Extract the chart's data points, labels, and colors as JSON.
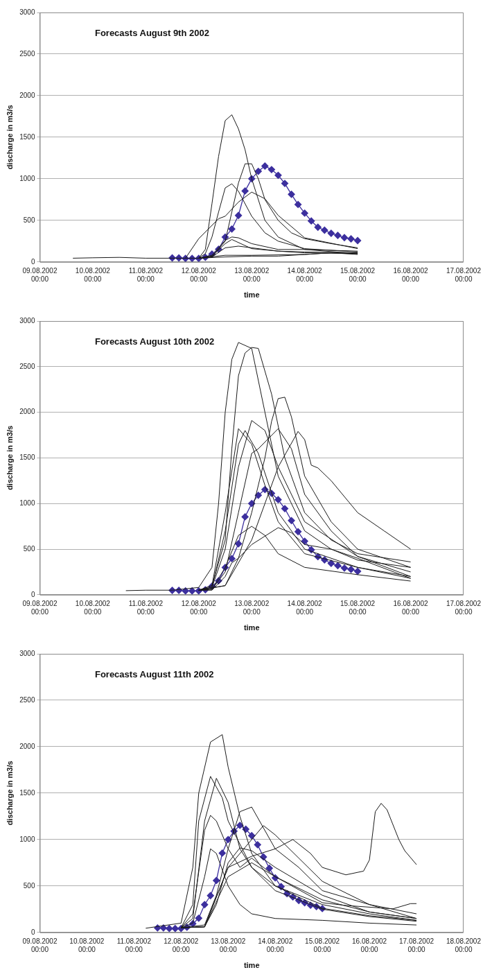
{
  "chart_data": [
    {
      "type": "line",
      "title": "Forecasts August 9th 2002",
      "xlabel": "time",
      "ylabel": "discharge in m3/s",
      "xlim": [
        "2002-08-09T00:00",
        "2002-08-17T00:00"
      ],
      "xticks": [
        {
          "value": "2002-08-09T00:00",
          "label": "09.08.2002 00:00"
        },
        {
          "value": "2002-08-10T00:00",
          "label": "10.08.2002 00:00"
        },
        {
          "value": "2002-08-11T00:00",
          "label": "11.08.2002 00:00"
        },
        {
          "value": "2002-08-12T00:00",
          "label": "12.08.2002 00:00"
        },
        {
          "value": "2002-08-13T00:00",
          "label": "13.08.2002 00:00"
        },
        {
          "value": "2002-08-14T00:00",
          "label": "14.08.2002 00:00"
        },
        {
          "value": "2002-08-15T00:00",
          "label": "15.08.2002 00:00"
        },
        {
          "value": "2002-08-16T00:00",
          "label": "16.08.2002 00:00"
        },
        {
          "value": "2002-08-17T00:00",
          "label": "17.08.2002 00:00"
        }
      ],
      "ylim": [
        0,
        3000
      ],
      "yticks": [
        0,
        500,
        1000,
        1500,
        2000,
        2500,
        3000
      ],
      "grid": "y",
      "legend": false,
      "marker": "none",
      "line_style": "solid",
      "series": [
        {
          "color": "#1a1a1a",
          "x": [
            "2002-08-09T15:00",
            "2002-08-10T00:00",
            "2002-08-10T12:00",
            "2002-08-11T00:00",
            "2002-08-11T12:00",
            "2002-08-12T00:00",
            "2002-08-12T03:00",
            "2002-08-12T06:00",
            "2002-08-12T09:00",
            "2002-08-12T12:00",
            "2002-08-12T15:00",
            "2002-08-12T18:00",
            "2002-08-12T21:00",
            "2002-08-13T00:00",
            "2002-08-13T06:00",
            "2002-08-13T12:00",
            "2002-08-14T00:00",
            "2002-08-15T00:00"
          ],
          "values": [
            45,
            50,
            55,
            45,
            45,
            45,
            150,
            700,
            1270,
            1700,
            1770,
            1600,
            1350,
            1000,
            500,
            300,
            150,
            100
          ]
        },
        {
          "color": "#1a1a1a",
          "x": [
            "2002-08-12T00:00",
            "2002-08-12T03:00",
            "2002-08-12T06:00",
            "2002-08-12T09:00",
            "2002-08-12T12:00",
            "2002-08-12T15:00",
            "2002-08-12T18:00",
            "2002-08-13T00:00",
            "2002-08-13T06:00",
            "2002-08-13T12:00",
            "2002-08-14T00:00",
            "2002-08-15T00:00"
          ],
          "values": [
            45,
            100,
            300,
            600,
            890,
            940,
            850,
            550,
            350,
            250,
            160,
            120
          ]
        },
        {
          "color": "#1a1a1a",
          "x": [
            "2002-08-12T00:00",
            "2002-08-12T06:00",
            "2002-08-12T12:00",
            "2002-08-12T15:00",
            "2002-08-12T18:00",
            "2002-08-12T21:00",
            "2002-08-13T00:00",
            "2002-08-13T03:00",
            "2002-08-13T06:00",
            "2002-08-13T12:00",
            "2002-08-13T18:00",
            "2002-08-14T00:00",
            "2002-08-14T12:00",
            "2002-08-15T00:00"
          ],
          "values": [
            45,
            60,
            250,
            600,
            950,
            1180,
            1180,
            1000,
            750,
            500,
            350,
            280,
            220,
            170
          ]
        },
        {
          "color": "#1a1a1a",
          "x": [
            "2002-08-11T18:00",
            "2002-08-12T00:00",
            "2002-08-12T09:00",
            "2002-08-12T12:00",
            "2002-08-12T18:00",
            "2002-08-13T00:00",
            "2002-08-13T06:00",
            "2002-08-13T12:00",
            "2002-08-14T00:00",
            "2002-08-15T00:00"
          ],
          "values": [
            45,
            280,
            520,
            550,
            720,
            840,
            760,
            560,
            290,
            160
          ]
        },
        {
          "color": "#1a1a1a",
          "x": [
            "2002-08-12T00:00",
            "2002-08-12T06:00",
            "2002-08-12T12:00",
            "2002-08-12T15:00",
            "2002-08-12T18:00",
            "2002-08-13T00:00",
            "2002-08-13T12:00",
            "2002-08-14T00:00",
            "2002-08-15T00:00"
          ],
          "values": [
            45,
            80,
            260,
            300,
            290,
            220,
            150,
            150,
            130
          ]
        },
        {
          "color": "#1a1a1a",
          "x": [
            "2002-08-12T00:00",
            "2002-08-12T06:00",
            "2002-08-12T12:00",
            "2002-08-12T15:00",
            "2002-08-13T00:00",
            "2002-08-13T12:00",
            "2002-08-14T00:00",
            "2002-08-15T00:00"
          ],
          "values": [
            45,
            70,
            220,
            270,
            160,
            130,
            120,
            110
          ]
        },
        {
          "color": "#1a1a1a",
          "x": [
            "2002-08-12T00:00",
            "2002-08-12T06:00",
            "2002-08-12T12:00",
            "2002-08-12T18:00",
            "2002-08-13T00:00",
            "2002-08-13T12:00",
            "2002-08-14T00:00",
            "2002-08-15T00:00"
          ],
          "values": [
            45,
            60,
            170,
            190,
            170,
            130,
            110,
            100
          ]
        },
        {
          "color": "#1a1a1a",
          "x": [
            "2002-08-12T00:00",
            "2002-08-12T12:00",
            "2002-08-13T00:00",
            "2002-08-14T00:00",
            "2002-08-14T12:00",
            "2002-08-15T00:00"
          ],
          "values": [
            45,
            80,
            80,
            90,
            110,
            90
          ]
        },
        {
          "color": "#1a1a1a",
          "x": [
            "2002-08-12T00:00",
            "2002-08-12T12:00",
            "2002-08-13T00:00",
            "2002-08-13T12:00",
            "2002-08-14T00:00",
            "2002-08-14T12:00",
            "2002-08-15T00:00"
          ],
          "values": [
            45,
            60,
            70,
            70,
            90,
            110,
            100
          ]
        },
        {
          "color": "#3c2f9e",
          "marker": "diamond",
          "x": [
            "2002-08-11T12:00",
            "2002-08-11T15:00",
            "2002-08-11T18:00",
            "2002-08-11T21:00",
            "2002-08-12T00:00",
            "2002-08-12T03:00",
            "2002-08-12T06:00",
            "2002-08-12T09:00",
            "2002-08-12T12:00",
            "2002-08-12T15:00",
            "2002-08-12T18:00",
            "2002-08-12T21:00",
            "2002-08-13T00:00",
            "2002-08-13T03:00",
            "2002-08-13T06:00",
            "2002-08-13T09:00",
            "2002-08-13T12:00",
            "2002-08-13T15:00",
            "2002-08-13T18:00",
            "2002-08-13T21:00",
            "2002-08-14T00:00",
            "2002-08-14T03:00",
            "2002-08-14T06:00",
            "2002-08-14T09:00",
            "2002-08-14T12:00",
            "2002-08-14T15:00",
            "2002-08-14T18:00",
            "2002-08-14T21:00",
            "2002-08-15T00:00"
          ],
          "values": [
            48,
            48,
            42,
            42,
            42,
            55,
            94,
            153,
            299,
            396,
            559,
            854,
            1000,
            1090,
            1153,
            1111,
            1042,
            944,
            813,
            691,
            587,
            493,
            417,
            382,
            344,
            319,
            292,
            278,
            257
          ]
        }
      ]
    },
    {
      "type": "line",
      "title": "Forecasts August 10th 2002",
      "xlabel": "time",
      "ylabel": "discharge in m3/s",
      "xlim": [
        "2002-08-09T00:00",
        "2002-08-17T00:00"
      ],
      "xticks": [
        {
          "value": "2002-08-09T00:00",
          "label": "09.08.2002 00:00"
        },
        {
          "value": "2002-08-10T00:00",
          "label": "10.08.2002 00:00"
        },
        {
          "value": "2002-08-11T00:00",
          "label": "11.08.2002 00:00"
        },
        {
          "value": "2002-08-12T00:00",
          "label": "12.08.2002 00:00"
        },
        {
          "value": "2002-08-13T00:00",
          "label": "13.08.2002 00:00"
        },
        {
          "value": "2002-08-14T00:00",
          "label": "14.08.2002 00:00"
        },
        {
          "value": "2002-08-15T00:00",
          "label": "15.08.2002 00:00"
        },
        {
          "value": "2002-08-16T00:00",
          "label": "16.08.2002 00:00"
        },
        {
          "value": "2002-08-17T00:00",
          "label": "17.08.2002 00:00"
        }
      ],
      "ylim": [
        0,
        3000
      ],
      "yticks": [
        0,
        500,
        1000,
        1500,
        2000,
        2500,
        3000
      ],
      "grid": "y",
      "legend": false,
      "marker": "none",
      "line_style": "solid",
      "series": [
        {
          "color": "#1a1a1a",
          "x": [
            "2002-08-10T15:00",
            "2002-08-11T00:00",
            "2002-08-11T12:00",
            "2002-08-12T00:00",
            "2002-08-12T06:00",
            "2002-08-12T09:00",
            "2002-08-12T12:00",
            "2002-08-12T15:00",
            "2002-08-12T18:00",
            "2002-08-13T00:00",
            "2002-08-13T06:00",
            "2002-08-13T12:00",
            "2002-08-14T00:00",
            "2002-08-14T12:00",
            "2002-08-15T00:00",
            "2002-08-16T00:00"
          ],
          "values": [
            45,
            50,
            50,
            80,
            300,
            1000,
            2000,
            2580,
            2765,
            2700,
            2000,
            1300,
            700,
            500,
            380,
            300
          ]
        },
        {
          "color": "#1a1a1a",
          "x": [
            "2002-08-12T00:00",
            "2002-08-12T06:00",
            "2002-08-12T12:00",
            "2002-08-12T15:00",
            "2002-08-12T18:00",
            "2002-08-12T21:00",
            "2002-08-13T00:00",
            "2002-08-13T03:00",
            "2002-08-13T09:00",
            "2002-08-13T15:00",
            "2002-08-14T00:00",
            "2002-08-14T12:00",
            "2002-08-15T00:00",
            "2002-08-16T00:00"
          ],
          "values": [
            50,
            100,
            600,
            1600,
            2400,
            2650,
            2710,
            2700,
            2200,
            1500,
            900,
            600,
            450,
            360
          ]
        },
        {
          "color": "#1a1a1a",
          "x": [
            "2002-08-12T00:00",
            "2002-08-12T12:00",
            "2002-08-12T18:00",
            "2002-08-13T00:00",
            "2002-08-13T06:00",
            "2002-08-13T09:00",
            "2002-08-13T12:00",
            "2002-08-13T15:00",
            "2002-08-13T18:00",
            "2002-08-14T00:00",
            "2002-08-14T12:00",
            "2002-08-15T00:00",
            "2002-08-16T00:00"
          ],
          "values": [
            50,
            100,
            400,
            900,
            1500,
            1900,
            2150,
            2165,
            1950,
            1300,
            800,
            500,
            300
          ]
        },
        {
          "color": "#1a1a1a",
          "x": [
            "2002-08-12T00:00",
            "2002-08-12T06:00",
            "2002-08-12T12:00",
            "2002-08-12T18:00",
            "2002-08-13T00:00",
            "2002-08-13T06:00",
            "2002-08-13T12:00",
            "2002-08-14T00:00",
            "2002-08-15T00:00",
            "2002-08-16T00:00"
          ],
          "values": [
            50,
            80,
            500,
            1400,
            1910,
            1800,
            1400,
            800,
            420,
            250
          ]
        },
        {
          "color": "#1a1a1a",
          "x": [
            "2002-08-12T00:00",
            "2002-08-12T06:00",
            "2002-08-12T12:00",
            "2002-08-12T18:00",
            "2002-08-13T00:00",
            "2002-08-13T06:00",
            "2002-08-13T12:00",
            "2002-08-14T00:00",
            "2002-08-15T00:00",
            "2002-08-16T00:00"
          ],
          "values": [
            50,
            100,
            900,
            1820,
            1650,
            1200,
            800,
            450,
            300,
            200
          ]
        },
        {
          "color": "#1a1a1a",
          "x": [
            "2002-08-12T00:00",
            "2002-08-12T06:00",
            "2002-08-12T12:00",
            "2002-08-12T18:00",
            "2002-08-12T21:00",
            "2002-08-13T03:00",
            "2002-08-13T12:00",
            "2002-08-14T00:00",
            "2002-08-15T00:00",
            "2002-08-16T00:00"
          ],
          "values": [
            50,
            80,
            700,
            1650,
            1800,
            1550,
            900,
            500,
            300,
            180
          ]
        },
        {
          "color": "#1a1a1a",
          "x": [
            "2002-08-12T00:00",
            "2002-08-12T06:00",
            "2002-08-12T12:00",
            "2002-08-12T18:00",
            "2002-08-13T00:00",
            "2002-08-13T03:00",
            "2002-08-13T12:00",
            "2002-08-13T18:00",
            "2002-08-14T00:00",
            "2002-08-14T12:00",
            "2002-08-15T00:00",
            "2002-08-16T00:00"
          ],
          "values": [
            50,
            60,
            250,
            900,
            1550,
            1600,
            1820,
            1600,
            1100,
            700,
            420,
            200
          ]
        },
        {
          "color": "#1a1a1a",
          "x": [
            "2002-08-12T00:00",
            "2002-08-12T12:00",
            "2002-08-13T00:00",
            "2002-08-13T12:00",
            "2002-08-13T21:00",
            "2002-08-14T00:00",
            "2002-08-14T03:00",
            "2002-08-14T06:00",
            "2002-08-14T12:00",
            "2002-08-15T00:00",
            "2002-08-15T12:00",
            "2002-08-16T00:00"
          ],
          "values": [
            50,
            100,
            600,
            1400,
            1790,
            1700,
            1420,
            1390,
            1250,
            900,
            700,
            500
          ]
        },
        {
          "color": "#1a1a1a",
          "x": [
            "2002-08-12T00:00",
            "2002-08-12T06:00",
            "2002-08-12T12:00",
            "2002-08-12T18:00",
            "2002-08-13T00:00",
            "2002-08-13T06:00",
            "2002-08-13T12:00",
            "2002-08-14T00:00",
            "2002-08-15T00:00",
            "2002-08-16T00:00"
          ],
          "values": [
            50,
            60,
            300,
            650,
            750,
            650,
            450,
            300,
            220,
            150
          ]
        },
        {
          "color": "#1a1a1a",
          "x": [
            "2002-08-12T00:00",
            "2002-08-12T06:00",
            "2002-08-12T12:00",
            "2002-08-12T15:00",
            "2002-08-12T18:00",
            "2002-08-13T00:00",
            "2002-08-13T12:00",
            "2002-08-13T18:00",
            "2002-08-14T00:00",
            "2002-08-14T12:00",
            "2002-08-15T00:00",
            "2002-08-16T00:00"
          ],
          "values": [
            50,
            50,
            200,
            350,
            400,
            550,
            735,
            680,
            550,
            500,
            400,
            180
          ]
        },
        {
          "color": "#3c2f9e",
          "marker": "diamond",
          "x": [
            "2002-08-11T12:00",
            "2002-08-11T15:00",
            "2002-08-11T18:00",
            "2002-08-11T21:00",
            "2002-08-12T00:00",
            "2002-08-12T03:00",
            "2002-08-12T06:00",
            "2002-08-12T09:00",
            "2002-08-12T12:00",
            "2002-08-12T15:00",
            "2002-08-12T18:00",
            "2002-08-12T21:00",
            "2002-08-13T00:00",
            "2002-08-13T03:00",
            "2002-08-13T06:00",
            "2002-08-13T09:00",
            "2002-08-13T12:00",
            "2002-08-13T15:00",
            "2002-08-13T18:00",
            "2002-08-13T21:00",
            "2002-08-14T00:00",
            "2002-08-14T03:00",
            "2002-08-14T06:00",
            "2002-08-14T09:00",
            "2002-08-14T12:00",
            "2002-08-14T15:00",
            "2002-08-14T18:00",
            "2002-08-14T21:00",
            "2002-08-15T00:00"
          ],
          "values": [
            48,
            48,
            42,
            42,
            42,
            55,
            94,
            153,
            299,
            396,
            559,
            854,
            1000,
            1090,
            1153,
            1111,
            1042,
            944,
            813,
            691,
            587,
            493,
            417,
            382,
            344,
            319,
            292,
            278,
            257
          ]
        }
      ]
    },
    {
      "type": "line",
      "title": "Forecasts August 11th 2002",
      "xlabel": "time",
      "ylabel": "discharge in m3/s",
      "xlim": [
        "2002-08-09T00:00",
        "2002-08-18T00:00"
      ],
      "xticks": [
        {
          "value": "2002-08-09T00:00",
          "label": "09.08.2002 00:00"
        },
        {
          "value": "2002-08-10T00:00",
          "label": "10.08.2002 00:00"
        },
        {
          "value": "2002-08-11T00:00",
          "label": "11.08.2002 00:00"
        },
        {
          "value": "2002-08-12T00:00",
          "label": "12.08.2002 00:00"
        },
        {
          "value": "2002-08-13T00:00",
          "label": "13.08.2002 00:00"
        },
        {
          "value": "2002-08-14T00:00",
          "label": "14.08.2002 00:00"
        },
        {
          "value": "2002-08-15T00:00",
          "label": "15.08.2002 00:00"
        },
        {
          "value": "2002-08-16T00:00",
          "label": "16.08.2002 00:00"
        },
        {
          "value": "2002-08-17T00:00",
          "label": "17.08.2002 00:00"
        },
        {
          "value": "2002-08-18T00:00",
          "label": "18.08.2002 00:00"
        }
      ],
      "ylim": [
        0,
        3000
      ],
      "yticks": [
        0,
        500,
        1000,
        1500,
        2000,
        2500,
        3000
      ],
      "grid": "y",
      "legend": false,
      "marker": "none",
      "line_style": "solid",
      "series": [
        {
          "color": "#1a1a1a",
          "x": [
            "2002-08-11T06:00",
            "2002-08-12T00:00",
            "2002-08-12T06:00",
            "2002-08-12T09:00",
            "2002-08-12T15:00",
            "2002-08-12T21:00",
            "2002-08-13T00:00",
            "2002-08-13T06:00",
            "2002-08-13T12:00",
            "2002-08-14T00:00",
            "2002-08-15T00:00",
            "2002-08-16T00:00",
            "2002-08-17T00:00"
          ],
          "values": [
            45,
            100,
            700,
            1500,
            2050,
            2130,
            1780,
            1250,
            850,
            500,
            260,
            180,
            130
          ]
        },
        {
          "color": "#1a1a1a",
          "x": [
            "2002-08-12T00:00",
            "2002-08-12T06:00",
            "2002-08-12T09:00",
            "2002-08-12T15:00",
            "2002-08-12T21:00",
            "2002-08-13T00:00",
            "2002-08-13T12:00",
            "2002-08-14T00:00",
            "2002-08-15T00:00",
            "2002-08-16T00:00",
            "2002-08-17T00:00"
          ],
          "values": [
            50,
            300,
            1200,
            1680,
            1450,
            1200,
            700,
            450,
            250,
            170,
            120
          ]
        },
        {
          "color": "#1a1a1a",
          "x": [
            "2002-08-12T00:00",
            "2002-08-12T06:00",
            "2002-08-12T12:00",
            "2002-08-12T18:00",
            "2002-08-13T00:00",
            "2002-08-13T06:00",
            "2002-08-13T12:00",
            "2002-08-14T00:00",
            "2002-08-15T00:00",
            "2002-08-16T00:00",
            "2002-08-17T00:00"
          ],
          "values": [
            50,
            150,
            1200,
            1660,
            1400,
            900,
            700,
            500,
            300,
            200,
            130
          ]
        },
        {
          "color": "#1a1a1a",
          "x": [
            "2002-08-12T00:00",
            "2002-08-12T06:00",
            "2002-08-12T12:00",
            "2002-08-12T15:00",
            "2002-08-12T18:00",
            "2002-08-13T00:00",
            "2002-08-13T06:00",
            "2002-08-13T12:00",
            "2002-08-14T00:00",
            "2002-08-15T00:00",
            "2002-08-16T00:00",
            "2002-08-17T00:00"
          ],
          "values": [
            50,
            200,
            1100,
            1260,
            1200,
            900,
            700,
            800,
            600,
            350,
            220,
            150
          ]
        },
        {
          "color": "#1a1a1a",
          "x": [
            "2002-08-12T00:00",
            "2002-08-12T06:00",
            "2002-08-12T12:00",
            "2002-08-12T15:00",
            "2002-08-12T18:00",
            "2002-08-13T00:00",
            "2002-08-13T06:00",
            "2002-08-13T12:00",
            "2002-08-14T00:00",
            "2002-08-15T00:00",
            "2002-08-16T00:00",
            "2002-08-17T00:00"
          ],
          "values": [
            50,
            100,
            600,
            900,
            850,
            500,
            300,
            200,
            150,
            130,
            100,
            80
          ]
        },
        {
          "color": "#1a1a1a",
          "x": [
            "2002-08-12T00:00",
            "2002-08-12T12:00",
            "2002-08-12T18:00",
            "2002-08-13T00:00",
            "2002-08-13T06:00",
            "2002-08-13T12:00",
            "2002-08-14T00:00",
            "2002-08-14T12:00",
            "2002-08-15T00:00",
            "2002-08-16T00:00",
            "2002-08-17T00:00"
          ],
          "values": [
            50,
            80,
            400,
            900,
            1300,
            1350,
            900,
            700,
            450,
            300,
            200
          ]
        },
        {
          "color": "#1a1a1a",
          "x": [
            "2002-08-12T00:00",
            "2002-08-12T12:00",
            "2002-08-13T00:00",
            "2002-08-13T06:00",
            "2002-08-13T18:00",
            "2002-08-14T00:00",
            "2002-08-14T12:00",
            "2002-08-15T00:00",
            "2002-08-16T00:00",
            "2002-08-17T00:00"
          ],
          "values": [
            50,
            60,
            700,
            850,
            1150,
            1050,
            800,
            550,
            300,
            150
          ]
        },
        {
          "color": "#1a1a1a",
          "x": [
            "2002-08-12T00:00",
            "2002-08-12T12:00",
            "2002-08-13T00:00",
            "2002-08-13T12:00",
            "2002-08-14T00:00",
            "2002-08-14T09:00",
            "2002-08-14T18:00",
            "2002-08-15T00:00",
            "2002-08-15T12:00",
            "2002-08-15T21:00",
            "2002-08-16T00:00",
            "2002-08-16T03:00",
            "2002-08-16T06:00",
            "2002-08-16T09:00",
            "2002-08-16T15:00",
            "2002-08-16T18:00",
            "2002-08-17T00:00"
          ],
          "values": [
            50,
            60,
            700,
            820,
            900,
            1000,
            850,
            700,
            620,
            660,
            780,
            1300,
            1390,
            1320,
            1000,
            880,
            730
          ]
        },
        {
          "color": "#1a1a1a",
          "x": [
            "2002-08-12T00:00",
            "2002-08-12T12:00",
            "2002-08-12T18:00",
            "2002-08-13T00:00",
            "2002-08-13T06:00",
            "2002-08-13T12:00",
            "2002-08-14T00:00",
            "2002-08-15T00:00",
            "2002-08-16T00:00",
            "2002-08-17T00:00"
          ],
          "values": [
            50,
            60,
            300,
            750,
            910,
            880,
            700,
            400,
            220,
            150
          ]
        },
        {
          "color": "#1a1a1a",
          "x": [
            "2002-08-12T00:00",
            "2002-08-12T12:00",
            "2002-08-13T00:00",
            "2002-08-13T12:00",
            "2002-08-14T00:00",
            "2002-08-15T00:00",
            "2002-08-15T12:00",
            "2002-08-16T12:00",
            "2002-08-16T21:00",
            "2002-08-17T00:00"
          ],
          "values": [
            50,
            60,
            600,
            750,
            600,
            320,
            290,
            254,
            310,
            310
          ]
        },
        {
          "color": "#3c2f9e",
          "marker": "diamond",
          "x": [
            "2002-08-11T12:00",
            "2002-08-11T15:00",
            "2002-08-11T18:00",
            "2002-08-11T21:00",
            "2002-08-12T00:00",
            "2002-08-12T03:00",
            "2002-08-12T06:00",
            "2002-08-12T09:00",
            "2002-08-12T12:00",
            "2002-08-12T15:00",
            "2002-08-12T18:00",
            "2002-08-12T21:00",
            "2002-08-13T00:00",
            "2002-08-13T03:00",
            "2002-08-13T06:00",
            "2002-08-13T09:00",
            "2002-08-13T12:00",
            "2002-08-13T15:00",
            "2002-08-13T18:00",
            "2002-08-13T21:00",
            "2002-08-14T00:00",
            "2002-08-14T03:00",
            "2002-08-14T06:00",
            "2002-08-14T09:00",
            "2002-08-14T12:00",
            "2002-08-14T15:00",
            "2002-08-14T18:00",
            "2002-08-14T21:00",
            "2002-08-15T00:00"
          ],
          "values": [
            48,
            48,
            42,
            42,
            42,
            55,
            94,
            153,
            299,
            396,
            559,
            854,
            1000,
            1090,
            1153,
            1111,
            1042,
            944,
            813,
            691,
            587,
            493,
            417,
            382,
            344,
            319,
            292,
            278,
            257
          ]
        }
      ]
    }
  ]
}
